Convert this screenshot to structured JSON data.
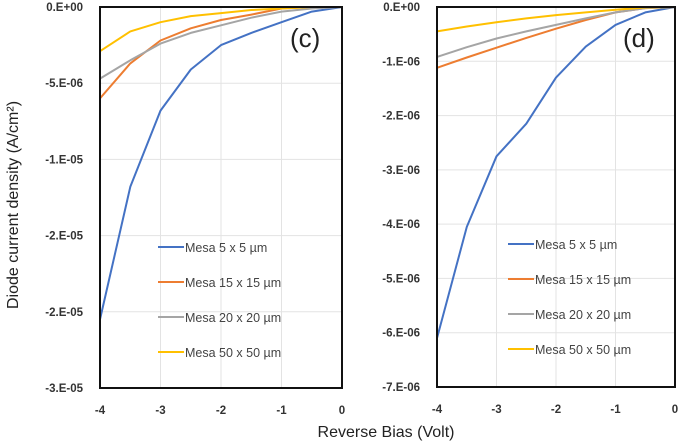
{
  "chart_data": [
    {
      "type": "line",
      "panel_label": "(c)",
      "xlabel": "Reverse Bias (Volt)",
      "ylabel": "Diode current density (A/cm²)",
      "xlim": [
        -4,
        0
      ],
      "ylim": [
        -2.5e-05,
        0
      ],
      "grid": true,
      "legend_position": "bottom-right",
      "x_ticks": [
        -4,
        -3,
        -2,
        -1,
        0
      ],
      "x_tick_labels": [
        "-4",
        "-3",
        "-2",
        "-1",
        "0"
      ],
      "y_ticks": [
        0,
        -5e-06,
        -1e-05,
        -1.5e-05,
        -2e-05,
        -2.5e-05
      ],
      "y_tick_labels": [
        "0.E+00",
        "-5.E-06",
        "-1.E-05",
        "-2.E-05",
        "-2.E-05",
        "-3.E-05"
      ],
      "x": [
        -4,
        -3.5,
        -3,
        -2.5,
        -2,
        -1.5,
        -1,
        -0.5,
        0
      ],
      "series": [
        {
          "name": "Mesa 5 x 5 µm",
          "color": "#4472c4",
          "values": [
            -2.05e-05,
            -1.18e-05,
            -6.8e-06,
            -4.1e-06,
            -2.5e-06,
            -1.7e-06,
            -1e-06,
            -3e-07,
            0
          ]
        },
        {
          "name": "Mesa 15 x 15 µm",
          "color": "#ed7d31",
          "values": [
            -6e-06,
            -3.7e-06,
            -2.2e-06,
            -1.4e-06,
            -8.5e-07,
            -5e-07,
            -1e-07,
            0,
            0
          ]
        },
        {
          "name": "Mesa 20 x 20 µm",
          "color": "#a5a5a5",
          "values": [
            -4.7e-06,
            -3.5e-06,
            -2.4e-06,
            -1.7e-06,
            -1.2e-06,
            -7e-07,
            -3e-07,
            -1e-07,
            0
          ]
        },
        {
          "name": "Mesa 50 x 50 µm",
          "color": "#ffc000",
          "values": [
            -2.9e-06,
            -1.6e-06,
            -1e-06,
            -6e-07,
            -4e-07,
            -2e-07,
            -1e-07,
            0,
            0
          ]
        }
      ]
    },
    {
      "type": "line",
      "panel_label": "(d)",
      "xlabel": "Reverse Bias (Volt)",
      "ylabel": "Diode current density (A/cm²)",
      "xlim": [
        -4,
        0
      ],
      "ylim": [
        -7e-06,
        0
      ],
      "grid": true,
      "legend_position": "bottom-right",
      "x_ticks": [
        -4,
        -3,
        -2,
        -1,
        0
      ],
      "x_tick_labels": [
        "-4",
        "-3",
        "-2",
        "-1",
        "0"
      ],
      "y_ticks": [
        0,
        -1e-06,
        -2e-06,
        -3e-06,
        -4e-06,
        -5e-06,
        -6e-06,
        -7e-06
      ],
      "y_tick_labels": [
        "0.E+00",
        "-1.E-06",
        "-2.E-06",
        "-3.E-06",
        "-4.E-06",
        "-5.E-06",
        "-6.E-06",
        "-7.E-06"
      ],
      "x": [
        -4,
        -3.5,
        -3,
        -2.5,
        -2,
        -1.5,
        -1,
        -0.5,
        0
      ],
      "series": [
        {
          "name": "Mesa 5 x 5 µm",
          "color": "#4472c4",
          "values": [
            -6.1e-06,
            -4.05e-06,
            -2.75e-06,
            -2.15e-06,
            -1.3e-06,
            -7.3e-07,
            -3.3e-07,
            -1e-07,
            0
          ]
        },
        {
          "name": "Mesa 15 x 15 µm",
          "color": "#ed7d31",
          "values": [
            -1.12e-06,
            -9.3e-07,
            -7.5e-07,
            -5.7e-07,
            -4e-07,
            -2.4e-07,
            -1e-07,
            -2e-08,
            0
          ]
        },
        {
          "name": "Mesa 20 x 20 µm",
          "color": "#a5a5a5",
          "values": [
            -9.2e-07,
            -7.4e-07,
            -5.8e-07,
            -4.5e-07,
            -3.3e-07,
            -2.1e-07,
            -1e-07,
            -2e-08,
            0
          ]
        },
        {
          "name": "Mesa 50 x 50 µm",
          "color": "#ffc000",
          "values": [
            -4.5e-07,
            -3.6e-07,
            -2.8e-07,
            -2.1e-07,
            -1.5e-07,
            -1e-07,
            -5e-08,
            -1e-08,
            0
          ]
        }
      ]
    }
  ],
  "axis_titles": {
    "x": "Reverse Bias (Volt)",
    "y": "Diode current density (A/cm²)"
  }
}
